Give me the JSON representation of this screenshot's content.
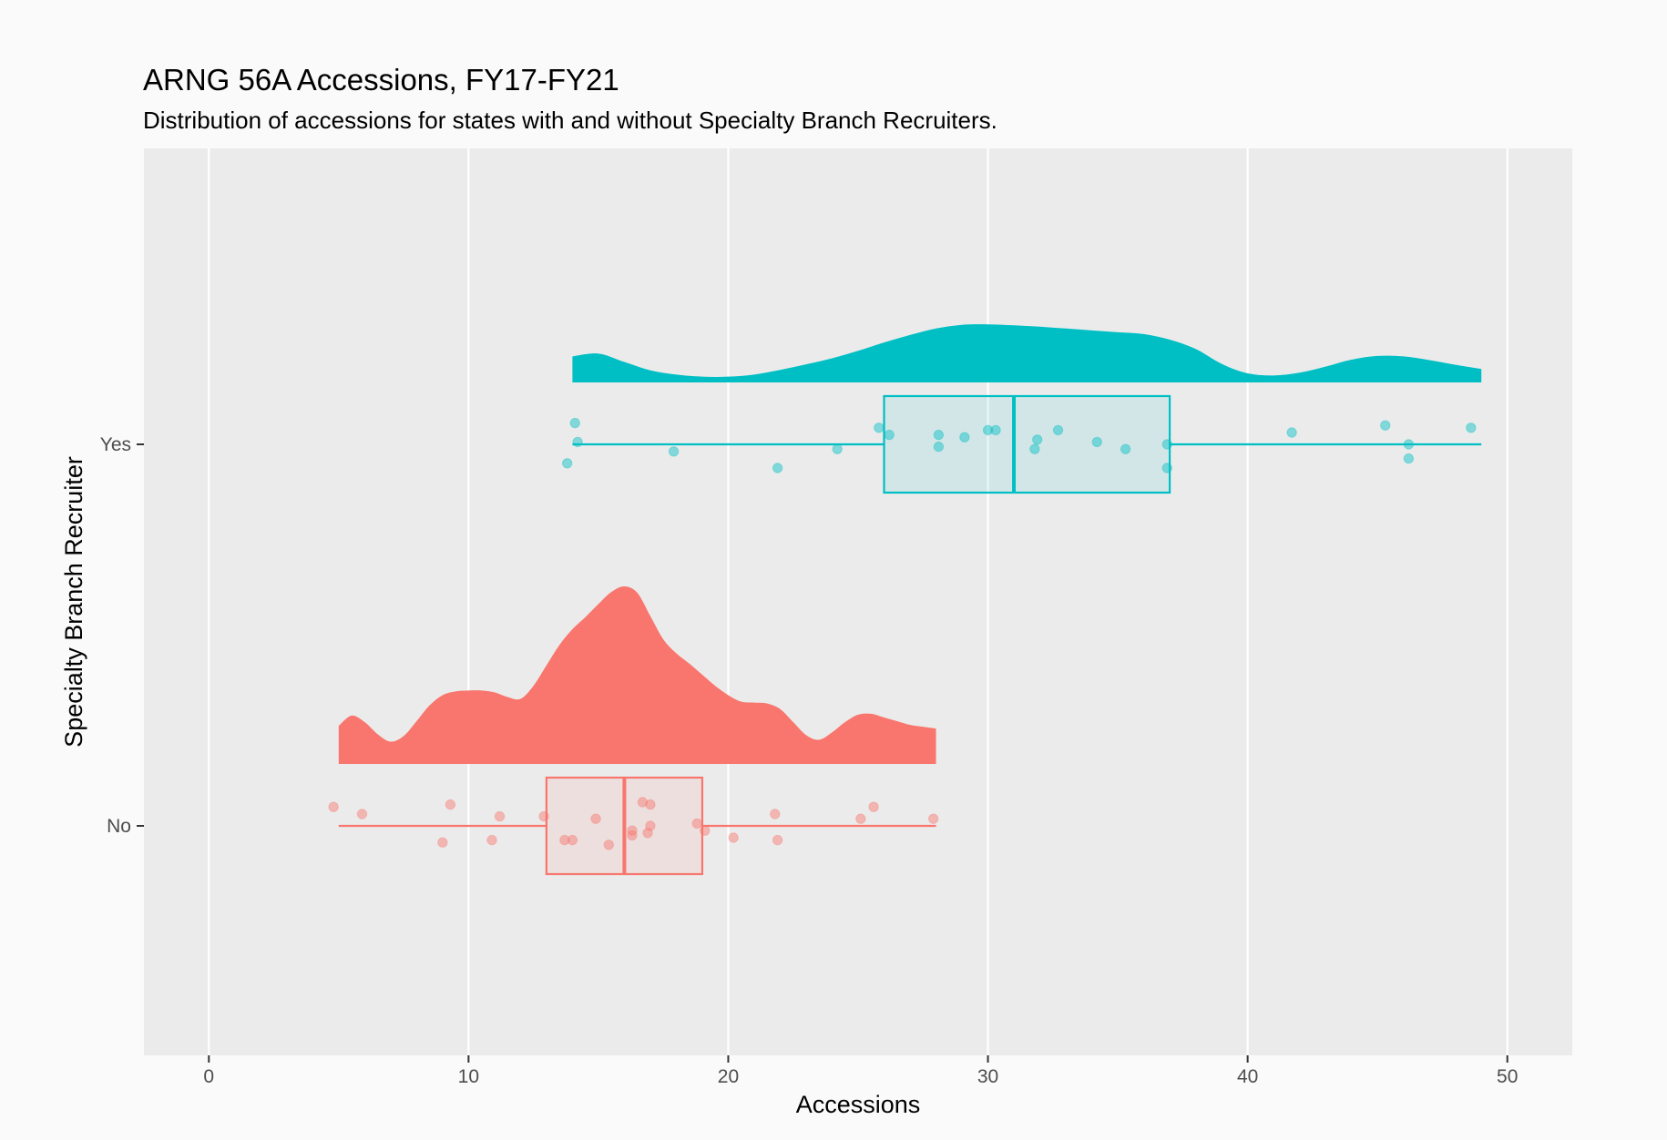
{
  "chart_data": {
    "type": "raincloud",
    "title": "ARNG 56A Accessions, FY17-FY21",
    "subtitle": "Distribution of accessions for states with and without Specialty Branch Recruiters.",
    "xlabel": "Accessions",
    "ylabel": "Specialty Branch Recruiter",
    "xlim": [
      -2.5,
      52.5
    ],
    "x_ticks": [
      0,
      10,
      20,
      30,
      40,
      50
    ],
    "grid": true,
    "colors": {
      "Yes": "#00BFC4",
      "No": "#F8766D"
    },
    "groups": [
      {
        "name": "Yes",
        "box": {
          "min": 14,
          "q1": 26,
          "median": 31,
          "q3": 37,
          "max": 49
        },
        "points": [
          {
            "x": 14.1,
            "y": 0.09
          },
          {
            "x": 14.2,
            "y": 0.01
          },
          {
            "x": 13.8,
            "y": -0.08
          },
          {
            "x": 17.9,
            "y": -0.03
          },
          {
            "x": 21.9,
            "y": -0.1
          },
          {
            "x": 24.2,
            "y": -0.02
          },
          {
            "x": 25.8,
            "y": 0.07
          },
          {
            "x": 26.2,
            "y": 0.04
          },
          {
            "x": 28.1,
            "y": 0.04
          },
          {
            "x": 28.1,
            "y": -0.01
          },
          {
            "x": 29.1,
            "y": 0.03
          },
          {
            "x": 30.0,
            "y": 0.06
          },
          {
            "x": 30.3,
            "y": 0.06
          },
          {
            "x": 31.9,
            "y": 0.02
          },
          {
            "x": 31.8,
            "y": -0.02
          },
          {
            "x": 32.7,
            "y": 0.06
          },
          {
            "x": 34.2,
            "y": 0.01
          },
          {
            "x": 35.3,
            "y": -0.02
          },
          {
            "x": 36.9,
            "y": 0.0
          },
          {
            "x": 36.9,
            "y": -0.1
          },
          {
            "x": 41.7,
            "y": 0.05
          },
          {
            "x": 45.3,
            "y": 0.08
          },
          {
            "x": 46.2,
            "y": 0.0
          },
          {
            "x": 46.2,
            "y": -0.06
          },
          {
            "x": 48.6,
            "y": 0.07
          }
        ],
        "density": {
          "x": [
            14,
            15,
            16,
            17,
            18,
            19,
            20,
            21,
            22,
            23,
            24,
            25,
            26,
            27,
            28,
            29,
            30,
            31,
            32,
            33,
            34,
            35,
            36,
            37,
            38,
            39,
            40,
            41,
            42,
            43,
            44,
            45,
            46,
            47,
            48,
            49
          ],
          "y": [
            0.028,
            0.031,
            0.022,
            0.013,
            0.0085,
            0.0062,
            0.0062,
            0.0085,
            0.0135,
            0.0195,
            0.026,
            0.034,
            0.043,
            0.051,
            0.058,
            0.062,
            0.0625,
            0.0615,
            0.06,
            0.058,
            0.056,
            0.054,
            0.052,
            0.046,
            0.036,
            0.02,
            0.0098,
            0.0075,
            0.0105,
            0.017,
            0.0245,
            0.0285,
            0.028,
            0.024,
            0.019,
            0.0145
          ]
        }
      },
      {
        "name": "No",
        "box": {
          "min": 5,
          "q1": 13,
          "median": 16,
          "q3": 19,
          "max": 28
        },
        "points": [
          {
            "x": 4.8,
            "y": 0.08
          },
          {
            "x": 5.9,
            "y": 0.05
          },
          {
            "x": 9.0,
            "y": -0.07
          },
          {
            "x": 9.3,
            "y": 0.09
          },
          {
            "x": 10.9,
            "y": -0.06
          },
          {
            "x": 11.2,
            "y": 0.04
          },
          {
            "x": 12.9,
            "y": 0.04
          },
          {
            "x": 13.7,
            "y": -0.06
          },
          {
            "x": 14.0,
            "y": -0.06
          },
          {
            "x": 14.9,
            "y": 0.03
          },
          {
            "x": 15.4,
            "y": -0.08
          },
          {
            "x": 16.3,
            "y": -0.02
          },
          {
            "x": 16.3,
            "y": -0.04
          },
          {
            "x": 16.7,
            "y": 0.1
          },
          {
            "x": 17.0,
            "y": 0.0
          },
          {
            "x": 16.9,
            "y": -0.03
          },
          {
            "x": 17.0,
            "y": 0.09
          },
          {
            "x": 18.8,
            "y": 0.01
          },
          {
            "x": 19.1,
            "y": -0.02
          },
          {
            "x": 20.2,
            "y": -0.05
          },
          {
            "x": 21.8,
            "y": 0.05
          },
          {
            "x": 21.9,
            "y": -0.06
          },
          {
            "x": 25.1,
            "y": 0.03
          },
          {
            "x": 25.6,
            "y": 0.08
          },
          {
            "x": 27.9,
            "y": 0.03
          }
        ],
        "density": {
          "x": [
            5,
            5.5,
            6,
            6.5,
            7,
            7.5,
            8,
            8.5,
            9,
            9.5,
            10,
            10.5,
            11,
            11.5,
            12,
            12.5,
            13,
            13.5,
            14,
            14.5,
            15,
            15.5,
            16,
            16.5,
            17,
            17.5,
            18,
            18.5,
            19,
            19.5,
            20,
            20.5,
            21,
            21.5,
            22,
            22.5,
            23,
            23.5,
            24,
            24.5,
            25,
            25.5,
            26,
            26.5,
            27,
            27.5,
            28
          ],
          "y": [
            0.041,
            0.052,
            0.045,
            0.032,
            0.024,
            0.03,
            0.046,
            0.063,
            0.074,
            0.078,
            0.079,
            0.079,
            0.077,
            0.072,
            0.07,
            0.084,
            0.106,
            0.128,
            0.145,
            0.158,
            0.172,
            0.185,
            0.191,
            0.184,
            0.159,
            0.134,
            0.119,
            0.108,
            0.096,
            0.084,
            0.074,
            0.067,
            0.066,
            0.065,
            0.059,
            0.045,
            0.031,
            0.026,
            0.034,
            0.045,
            0.053,
            0.054,
            0.05,
            0.046,
            0.042,
            0.04,
            0.038
          ]
        }
      }
    ]
  }
}
